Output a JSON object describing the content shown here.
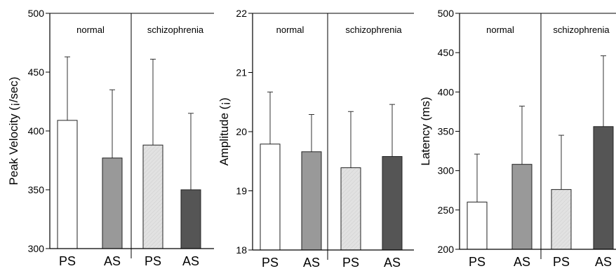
{
  "chart_data": [
    {
      "type": "bar",
      "ylabel": "Peak Velocity (¡/sec)",
      "ylim": [
        300,
        500
      ],
      "yticks": [
        300,
        350,
        400,
        450,
        500
      ],
      "groups": [
        "normal",
        "schizophrenia"
      ],
      "categories": [
        "PS",
        "AS",
        "PS",
        "AS"
      ],
      "values": [
        409,
        377,
        388,
        350
      ],
      "error_upper": [
        463,
        435,
        461,
        415
      ],
      "bar_colors": [
        "#ffffff",
        "#999999",
        "#dcdcdc",
        "#555555"
      ]
    },
    {
      "type": "bar",
      "ylabel": "Amplitude (¡)",
      "ylim": [
        18,
        22
      ],
      "yticks": [
        18,
        19,
        20,
        21,
        22
      ],
      "groups": [
        "normal",
        "schizophrenia"
      ],
      "categories": [
        "PS",
        "AS",
        "PS",
        "AS"
      ],
      "values": [
        19.79,
        19.66,
        19.39,
        19.58
      ],
      "error_upper": [
        20.67,
        20.29,
        20.34,
        20.46
      ],
      "bar_colors": [
        "#ffffff",
        "#999999",
        "#dcdcdc",
        "#555555"
      ]
    },
    {
      "type": "bar",
      "ylabel": "Latency (ms)",
      "ylim": [
        200,
        500
      ],
      "yticks": [
        200,
        250,
        300,
        350,
        400,
        450,
        500
      ],
      "groups": [
        "normal",
        "schizophrenia"
      ],
      "categories": [
        "PS",
        "AS",
        "PS",
        "AS"
      ],
      "values": [
        260,
        308,
        276,
        356
      ],
      "error_upper": [
        321,
        382,
        345,
        446
      ],
      "bar_colors": [
        "#ffffff",
        "#999999",
        "#dcdcdc",
        "#555555"
      ]
    }
  ]
}
